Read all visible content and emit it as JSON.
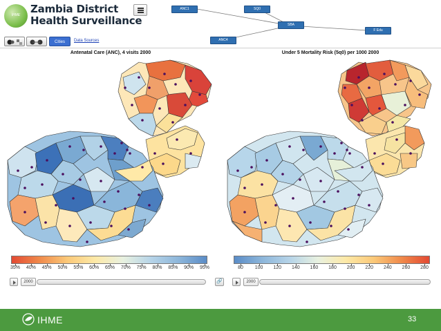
{
  "header": {
    "app_title_line1": "Zambia District",
    "app_title_line2": "Health Surveillance",
    "logo_text": "IHME"
  },
  "toolbar": {
    "cities_label": "Cities",
    "data_sources_label": "Data Sources"
  },
  "flow_diagram": {
    "nodes": [
      "ANC1",
      "SQ0",
      "SBA",
      "ANC4",
      "F Edu"
    ]
  },
  "left_map": {
    "title": "Antenatal Care (ANC), 4 visits 2000",
    "legend_ticks": [
      "35%",
      "40%",
      "45%",
      "50%",
      "55%",
      "60%",
      "65%",
      "70%",
      "75%",
      "80%",
      "85%",
      "90%",
      "95%"
    ],
    "year": "2000"
  },
  "right_map": {
    "title": "Under 5 Mortality Risk (5q0) per 1000 2000",
    "legend_ticks": [
      "80",
      "100",
      "120",
      "140",
      "160",
      "180",
      "200",
      "220",
      "240",
      "260",
      "280"
    ],
    "year": "2000"
  },
  "colors": {
    "footer_green": "#4c9a3f",
    "node_blue": "#2f6fb1",
    "accent_blue": "#3b6fd1"
  },
  "footer": {
    "brand": "IHME",
    "page_number": "33"
  }
}
